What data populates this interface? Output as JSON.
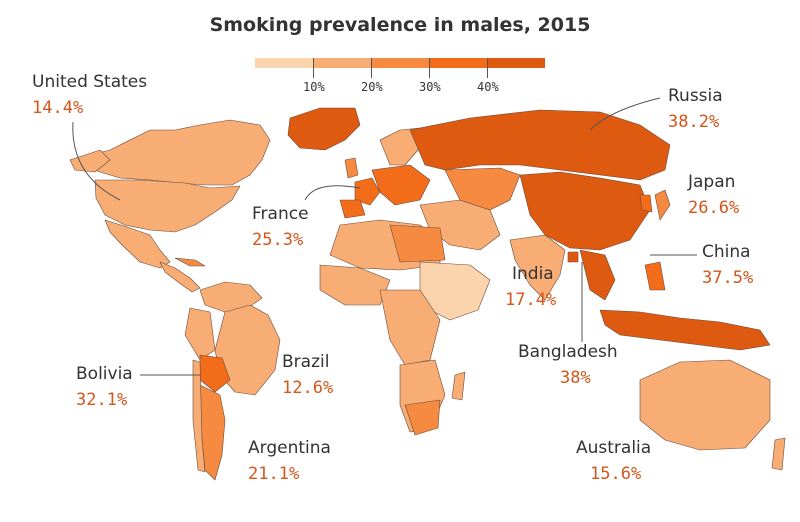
{
  "title": "Smoking prevalence in males, 2015",
  "legend": {
    "ticks": [
      "10%",
      "20%",
      "30%",
      "40%"
    ],
    "colors": [
      "#fbd3ad",
      "#f7ad74",
      "#f58a40",
      "#f26c1a",
      "#de5a10"
    ]
  },
  "colors": {
    "land_default": "#f8c196",
    "ocean": "#ffffff",
    "border": "#6b4a3a",
    "value_text": "#d4561a"
  },
  "countries": [
    {
      "name": "United States",
      "value": "14.4%"
    },
    {
      "name": "Russia",
      "value": "38.2%"
    },
    {
      "name": "France",
      "value": "25.3%"
    },
    {
      "name": "Japan",
      "value": "26.6%"
    },
    {
      "name": "China",
      "value": "37.5%"
    },
    {
      "name": "India",
      "value": "17.4%"
    },
    {
      "name": "Bangladesh",
      "value": "38%"
    },
    {
      "name": "Bolivia",
      "value": "32.1%"
    },
    {
      "name": "Brazil",
      "value": "12.6%"
    },
    {
      "name": "Argentina",
      "value": "21.1%"
    },
    {
      "name": "Australia",
      "value": "15.6%"
    }
  ]
}
